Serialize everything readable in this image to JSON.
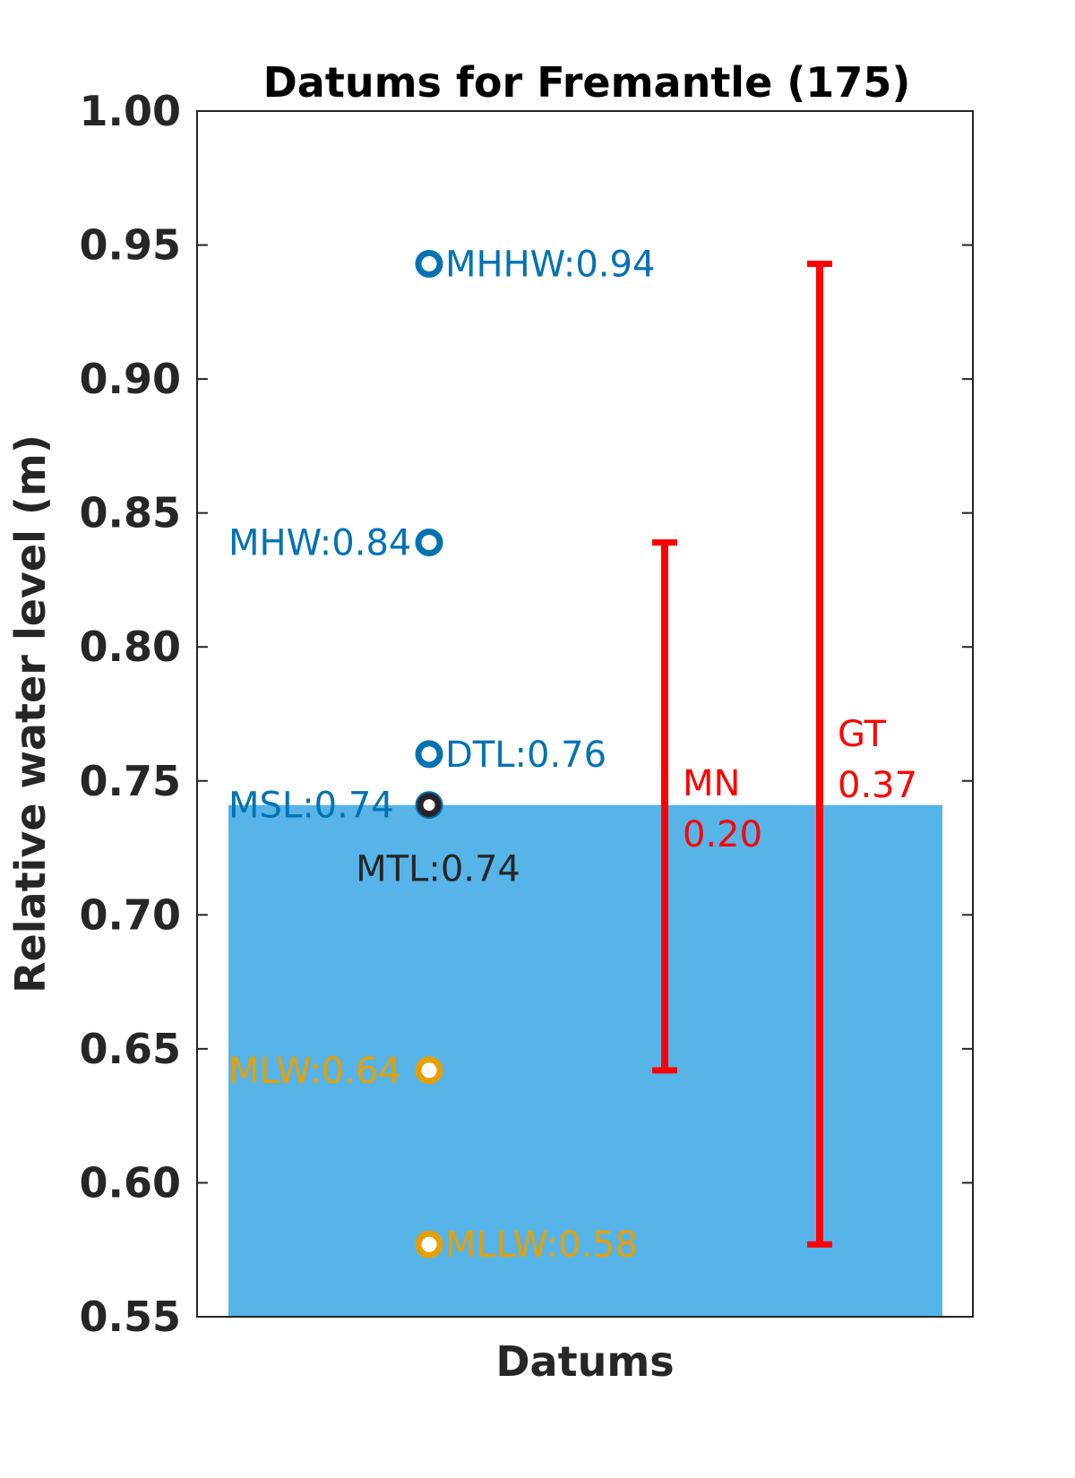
{
  "chart_data": {
    "type": "scatter",
    "title": "Datums for Fremantle (175)",
    "xlabel": "Datums",
    "ylabel": "Relative water level (m)",
    "ylim": [
      0.55,
      1.0
    ],
    "yticks": [
      "0.55",
      "0.60",
      "0.65",
      "0.70",
      "0.75",
      "0.80",
      "0.85",
      "0.90",
      "0.95",
      "1.00"
    ],
    "grid": false,
    "mean_water_level_fill": {
      "level": 0.741,
      "color": "#56b4e9"
    },
    "datums": [
      {
        "key": "MHHW",
        "label": "MHHW:0.94",
        "value": 0.943,
        "color": "#0072b2",
        "label_side": "right"
      },
      {
        "key": "MHW",
        "label": "MHW:0.84",
        "value": 0.839,
        "color": "#0072b2",
        "label_side": "left"
      },
      {
        "key": "DTL",
        "label": "DTL:0.76",
        "value": 0.76,
        "color": "#0072b2",
        "label_side": "right"
      },
      {
        "key": "MSL",
        "label": "MSL:0.74",
        "value": 0.741,
        "color": "#0072b2",
        "label_side": "left"
      },
      {
        "key": "MTL",
        "label": "MTL:0.74",
        "value": 0.741,
        "color": "#262626",
        "label_side": "below"
      },
      {
        "key": "MLW",
        "label": "MLW:0.64",
        "value": 0.642,
        "color": "#e69f00",
        "label_side": "left"
      },
      {
        "key": "MLLW",
        "label": "MLLW:0.58",
        "value": 0.577,
        "color": "#e69f00",
        "label_side": "right"
      }
    ],
    "ranges": [
      {
        "key": "MN",
        "name": "MN",
        "value_label": "0.20",
        "low": 0.642,
        "high": 0.839,
        "color": "#ff0000"
      },
      {
        "key": "GT",
        "name": "GT",
        "value_label": "0.37",
        "low": 0.577,
        "high": 0.943,
        "color": "#ff0000"
      }
    ]
  }
}
